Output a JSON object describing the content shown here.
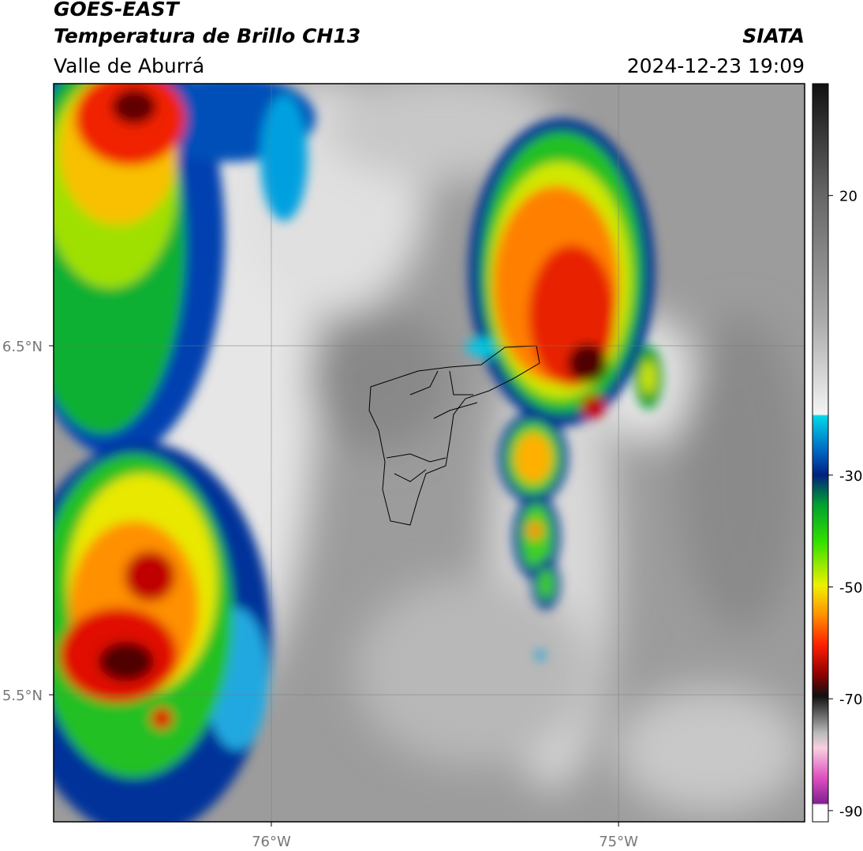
{
  "header": {
    "satellite": "GOES-EAST",
    "product": "Temperatura de Brillo CH13",
    "region": "Valle de Aburrá",
    "source": "SIATA",
    "datetime": "2024-12-23 19:09"
  },
  "map": {
    "xlim": [
      -76.627,
      -74.464
    ],
    "ylim": [
      5.136,
      7.251
    ],
    "xticks": [
      {
        "value": -76,
        "label": "76°W"
      },
      {
        "value": -75,
        "label": "75°W"
      }
    ],
    "yticks": [
      {
        "value": 5.5,
        "label": "5.5°N"
      },
      {
        "value": 6.5,
        "label": "6.5°N"
      }
    ]
  },
  "colorbar": {
    "lim": [
      -92,
      40
    ],
    "ticks": [
      -90,
      -70,
      -50,
      -30,
      20
    ]
  }
}
